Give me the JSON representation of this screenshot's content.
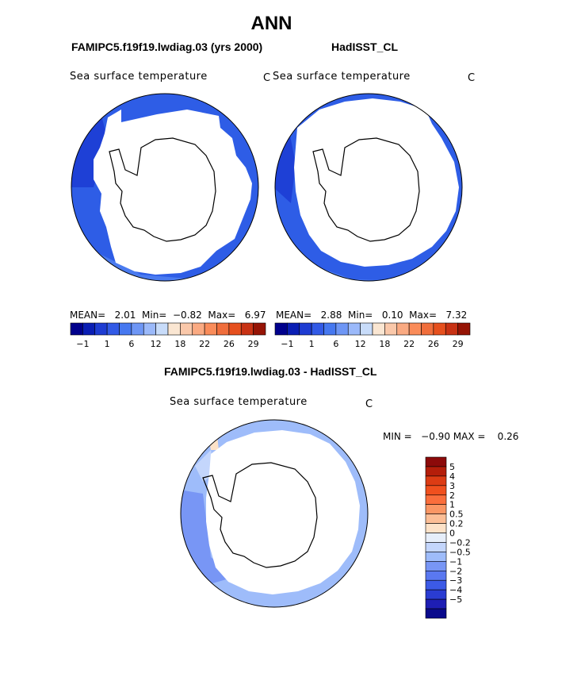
{
  "title": "ANN",
  "panels": [
    {
      "model": "FAMIPC5.f19f19.lwdiag.03 (yrs 2000)",
      "variable": "Sea surface temperature",
      "unit": "C",
      "stats": {
        "mean_label": "MEAN=",
        "mean": "2.01",
        "min_label": "Min=",
        "min": "−0.82",
        "max_label": "Max=",
        "max": "6.97"
      }
    },
    {
      "model": "HadISST_CL",
      "variable": "Sea surface temperature",
      "unit": "C",
      "stats": {
        "mean_label": "MEAN=",
        "mean": "2.88",
        "min_label": "Min=",
        "min": "0.10",
        "max_label": "Max=",
        "max": "7.32"
      }
    }
  ],
  "diff": {
    "title": "FAMIPC5.f19f19.lwdiag.03 - HadISST_CL",
    "variable": "Sea surface temperature",
    "unit": "C",
    "minmax_text": "MIN =   −0.90 MAX =    0.26"
  },
  "colorbar_horizontal": {
    "colors": [
      "#00008c",
      "#0a1eb4",
      "#1e3cd2",
      "#325ae6",
      "#4678f0",
      "#6e96f5",
      "#9bb9fa",
      "#c8dcfa",
      "#fae6d2",
      "#fac8aa",
      "#faaa82",
      "#fa8c5a",
      "#f06e3c",
      "#e6501e",
      "#c83214",
      "#961405"
    ],
    "labels": [
      "−1",
      "1",
      "6",
      "12",
      "18",
      "22",
      "26",
      "29"
    ]
  },
  "colorbar_vertical": {
    "colors": [
      "#8c0a0a",
      "#b41e0a",
      "#dc3c14",
      "#f0501e",
      "#fa6e3c",
      "#fa9664",
      "#fcbe96",
      "#fde2c8",
      "#e6eefa",
      "#c4d6fc",
      "#9ebcfa",
      "#7896f5",
      "#5a78f0",
      "#3c5ae6",
      "#2a3cd2",
      "#1e1eb4",
      "#0a0a8c"
    ],
    "labels": [
      "5",
      "4",
      "3",
      "2",
      "1",
      "0.5",
      "0.2",
      "0",
      "−0.2",
      "−0.5",
      "−1",
      "−2",
      "−3",
      "−4",
      "−5"
    ]
  }
}
